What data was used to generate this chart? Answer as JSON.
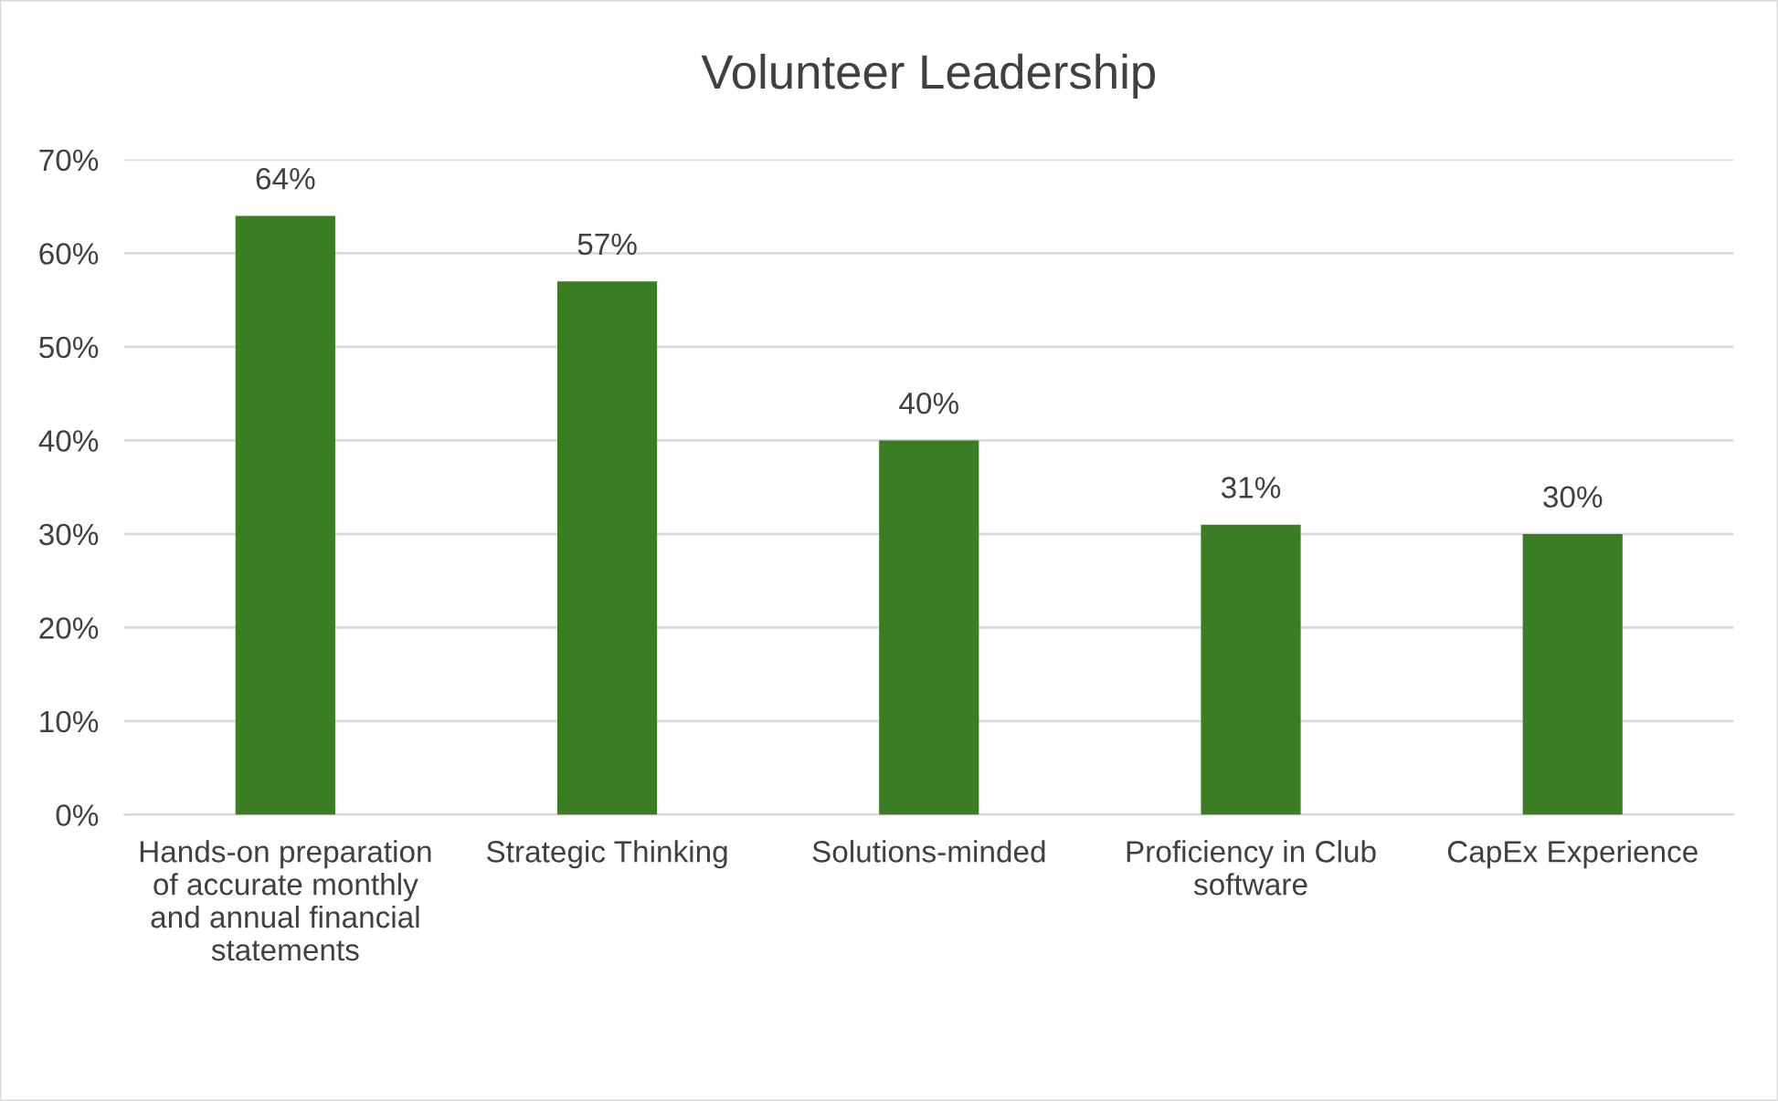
{
  "chart_data": {
    "type": "bar",
    "title": "Volunteer Leadership",
    "categories": [
      "Hands-on preparation of accurate monthly and annual financial statements",
      "Strategic Thinking",
      "Solutions-minded",
      "Proficiency in Club software",
      "CapEx Experience"
    ],
    "values": [
      64,
      57,
      40,
      31,
      30
    ],
    "value_labels": [
      "64%",
      "57%",
      "40%",
      "31%",
      "30%"
    ],
    "color": "#3a7d22",
    "ylim": [
      0,
      70
    ],
    "yticks": [
      {
        "value": 0,
        "label": "0%"
      },
      {
        "value": 10,
        "label": "10%"
      },
      {
        "value": 20,
        "label": "20%"
      },
      {
        "value": 30,
        "label": "30%"
      },
      {
        "value": 40,
        "label": "40%"
      },
      {
        "value": 50,
        "label": "50%"
      },
      {
        "value": 60,
        "label": "60%"
      },
      {
        "value": 70,
        "label": "70%"
      }
    ],
    "grid": "y"
  }
}
